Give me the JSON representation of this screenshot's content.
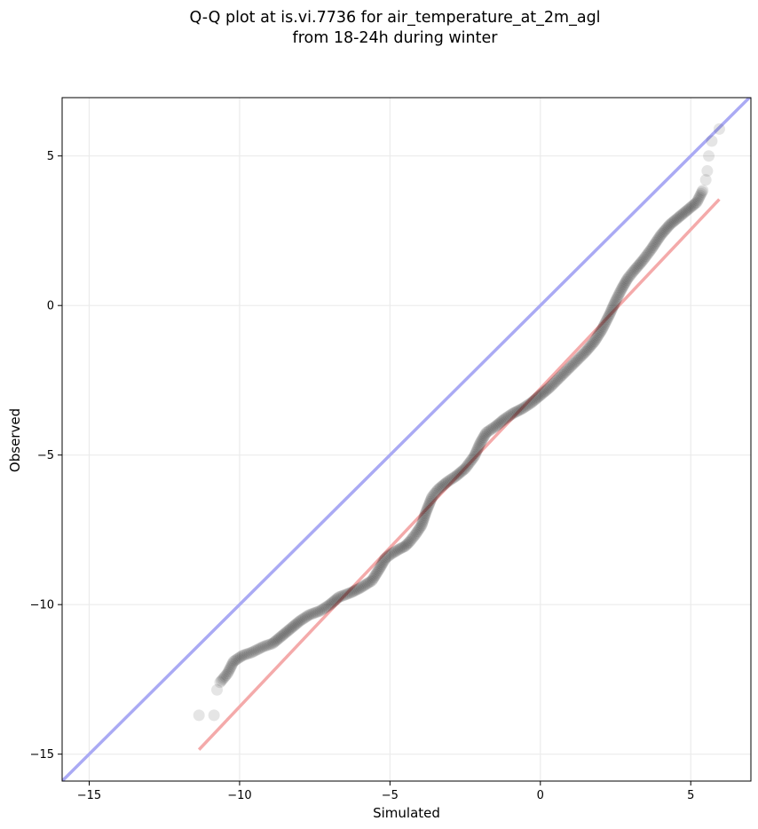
{
  "chart_data": {
    "type": "scatter",
    "title": [
      "Q-Q plot at is.vi.7736 for air_temperature_at_2m_agl",
      "from 18-24h during winter"
    ],
    "xlabel": "Simulated",
    "ylabel": "Observed",
    "xlim": [
      -15.9,
      7.0
    ],
    "ylim": [
      -15.9,
      6.95
    ],
    "xticks": [
      -15,
      -10,
      -5,
      0,
      5
    ],
    "yticks": [
      -15,
      -10,
      -5,
      0,
      5
    ],
    "grid": true,
    "colors": {
      "points": "#000000",
      "identity_line": "#aaaaf4",
      "fit_line": "#f4aaaa",
      "grid": "#ebebeb"
    },
    "identity_line": {
      "x": [
        -15.9,
        7.0
      ],
      "y": [
        -15.9,
        7.0
      ]
    },
    "fit_line": {
      "x": [
        -11.35,
        5.95
      ],
      "y": [
        -14.85,
        3.55
      ]
    },
    "quantiles": {
      "x": [
        -11.35,
        -10.85,
        -10.75,
        -10.65,
        -10.4,
        -10.2,
        -9.9,
        -9.6,
        -9.2,
        -8.9,
        -8.6,
        -8.3,
        -8.0,
        -7.7,
        -7.3,
        -7.0,
        -6.7,
        -6.3,
        -6.0,
        -5.6,
        -5.35,
        -5.15,
        -4.95,
        -4.7,
        -4.5,
        -4.35,
        -4.15,
        -3.95,
        -3.8,
        -3.6,
        -3.4,
        -3.1,
        -2.8,
        -2.5,
        -2.2,
        -2.0,
        -1.8,
        -1.5,
        -1.2,
        -0.9,
        -0.6,
        -0.3,
        0.0,
        0.3,
        0.6,
        0.9,
        1.2,
        1.5,
        1.8,
        2.05,
        2.3,
        2.5,
        2.7,
        2.9,
        3.1,
        3.4,
        3.7,
        4.0,
        4.3,
        4.6,
        4.9,
        5.2,
        5.4,
        5.5,
        5.55,
        5.6,
        5.7,
        5.95
      ],
      "y": [
        -13.7,
        -13.7,
        -12.85,
        -12.6,
        -12.3,
        -11.9,
        -11.7,
        -11.6,
        -11.4,
        -11.3,
        -11.05,
        -10.8,
        -10.55,
        -10.35,
        -10.2,
        -10.0,
        -9.75,
        -9.6,
        -9.45,
        -9.2,
        -8.8,
        -8.45,
        -8.3,
        -8.15,
        -8.05,
        -7.9,
        -7.65,
        -7.35,
        -6.9,
        -6.4,
        -6.15,
        -5.9,
        -5.7,
        -5.45,
        -5.05,
        -4.6,
        -4.25,
        -4.05,
        -3.8,
        -3.6,
        -3.45,
        -3.25,
        -3.0,
        -2.75,
        -2.45,
        -2.15,
        -1.85,
        -1.55,
        -1.2,
        -0.8,
        -0.3,
        0.15,
        0.55,
        0.9,
        1.15,
        1.5,
        1.9,
        2.35,
        2.7,
        2.95,
        3.2,
        3.45,
        3.85,
        4.2,
        4.5,
        5.0,
        5.5,
        5.9
      ]
    }
  }
}
